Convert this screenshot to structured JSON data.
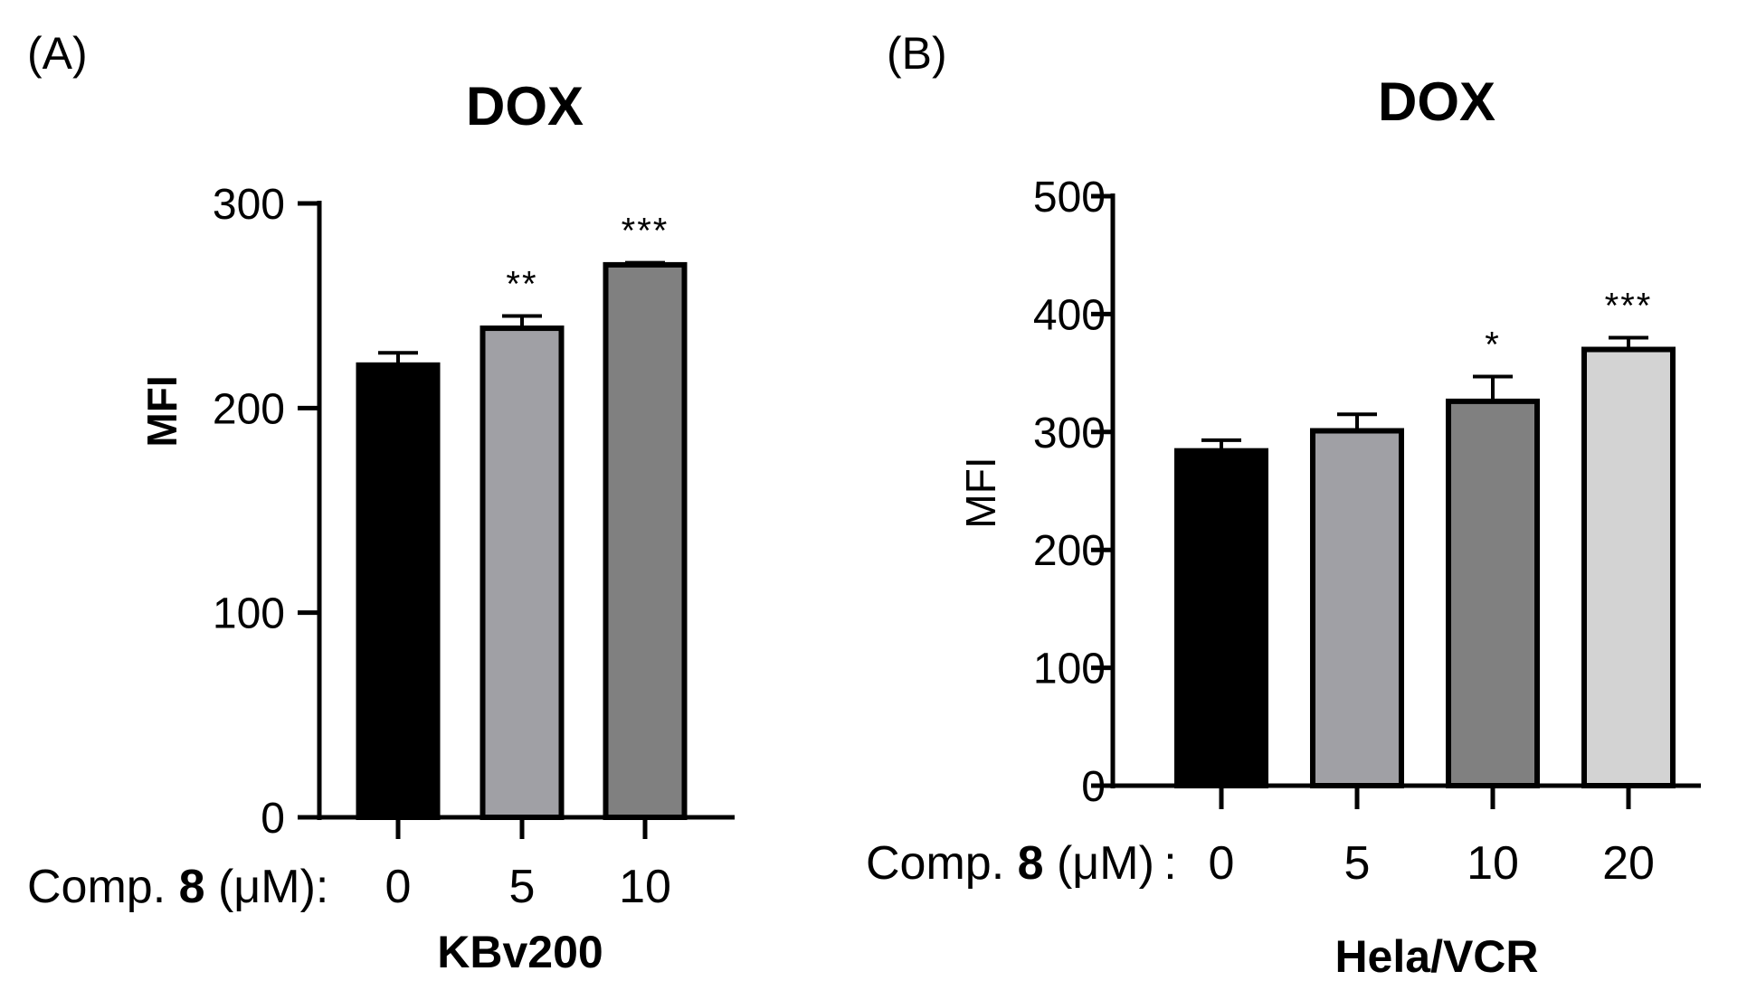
{
  "figure": {
    "panels": [
      {
        "label": "(A)",
        "title": "DOX",
        "ylabel": "MFI",
        "ylabel_bold": true,
        "x_prefix": {
          "before": "Comp. ",
          "bold": "8",
          "after": " (μM):"
        },
        "cell_line": "KBv200"
      },
      {
        "label": "(B)",
        "title": "DOX",
        "ylabel": "MFI",
        "ylabel_bold": false,
        "x_prefix": {
          "before": "Comp. ",
          "bold": "8",
          "after": " (μM) :"
        },
        "cell_line": "Hela/VCR"
      }
    ]
  },
  "chart_data": [
    {
      "type": "bar",
      "title": "DOX",
      "ylabel": "MFI",
      "xlabel": "KBv200",
      "categories": [
        "0",
        "5",
        "10"
      ],
      "values": [
        221,
        239,
        270
      ],
      "errors": [
        6,
        6,
        1
      ],
      "significance": [
        "",
        "**",
        "***"
      ],
      "colors": [
        "#000000",
        "#a0a0a5",
        "#808080"
      ],
      "ylim": [
        0,
        300
      ],
      "yticks": [
        0,
        100,
        200,
        300
      ]
    },
    {
      "type": "bar",
      "title": "DOX",
      "ylabel": "MFI",
      "xlabel": "Hela/VCR",
      "categories": [
        "0",
        "5",
        "10",
        "20"
      ],
      "values": [
        284,
        301,
        326,
        370
      ],
      "errors": [
        9,
        14,
        21,
        10
      ],
      "significance": [
        "",
        "",
        "*",
        "***"
      ],
      "colors": [
        "#000000",
        "#a0a0a5",
        "#808080",
        "#d3d3d3"
      ],
      "ylim": [
        0,
        500
      ],
      "yticks": [
        0,
        100,
        200,
        300,
        400,
        500
      ]
    }
  ]
}
